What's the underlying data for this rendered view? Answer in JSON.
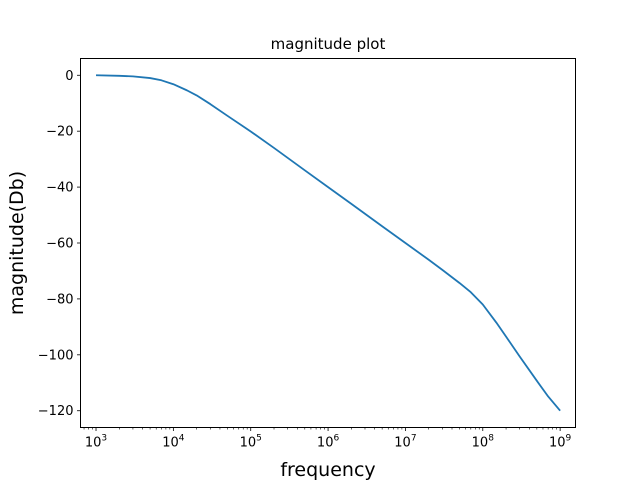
{
  "chart_data": {
    "type": "line",
    "title": "magnitude plot",
    "xlabel": "frequency",
    "ylabel": "magnitude(Db)",
    "xscale": "log",
    "xlim": [
      630,
      1580000000
    ],
    "ylim": [
      -126,
      6
    ],
    "grid": false,
    "legend": null,
    "x_ticks": [
      {
        "value": 1000,
        "base": "10",
        "exp": "3"
      },
      {
        "value": 10000,
        "base": "10",
        "exp": "4"
      },
      {
        "value": 100000,
        "base": "10",
        "exp": "5"
      },
      {
        "value": 1000000,
        "base": "10",
        "exp": "6"
      },
      {
        "value": 10000000,
        "base": "10",
        "exp": "7"
      },
      {
        "value": 100000000,
        "base": "10",
        "exp": "8"
      },
      {
        "value": 1000000000,
        "base": "10",
        "exp": "9"
      }
    ],
    "y_ticks": [
      {
        "value": 0,
        "label": "0"
      },
      {
        "value": -20,
        "label": "−20"
      },
      {
        "value": -40,
        "label": "−40"
      },
      {
        "value": -60,
        "label": "−60"
      },
      {
        "value": -80,
        "label": "−80"
      },
      {
        "value": -100,
        "label": "−100"
      },
      {
        "value": -120,
        "label": "−120"
      }
    ],
    "series": [
      {
        "color": "#1f77b4",
        "x": [
          1000,
          2000,
          3000,
          5000,
          7000,
          10000,
          15000,
          20000,
          30000,
          50000,
          100000,
          200000,
          500000,
          1000000,
          2000000,
          5000000,
          10000000,
          20000000,
          30000000,
          50000000,
          70000000,
          100000000,
          150000000,
          200000000,
          300000000,
          500000000,
          700000000,
          1000000000
        ],
        "y": [
          0,
          -0.2,
          -0.4,
          -1.0,
          -1.8,
          -3.2,
          -5.4,
          -7.2,
          -10.3,
          -14.5,
          -20.1,
          -26.0,
          -34.0,
          -40.0,
          -46.0,
          -54.0,
          -60.0,
          -66.0,
          -69.6,
          -74.3,
          -77.6,
          -82.0,
          -88.5,
          -93.5,
          -100.6,
          -109.3,
          -114.9,
          -120.0
        ]
      }
    ]
  }
}
